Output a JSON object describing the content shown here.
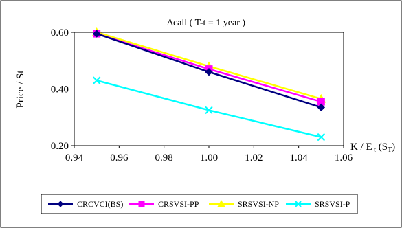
{
  "chart_data": {
    "type": "line",
    "title": "Δcall ( T-t = 1 year )",
    "xlabel": "K / E t (ST)",
    "ylabel": "Price / St",
    "x": [
      0.95,
      1.0,
      1.05
    ],
    "xlim": [
      0.94,
      1.06
    ],
    "ylim": [
      0.2,
      0.6
    ],
    "xticks": [
      "0.94",
      "0.96",
      "0.98",
      "1.00",
      "1.02",
      "1.04",
      "1.06"
    ],
    "yticks": [
      "0.20",
      "0.40",
      "0.60"
    ],
    "grid": "horizontal",
    "legend_position": "bottom",
    "series": [
      {
        "name": "CRCVCI(BS)",
        "values": [
          0.595,
          0.46,
          0.335
        ],
        "color": "#000080",
        "marker": "diamond"
      },
      {
        "name": "CRSVSI-PP",
        "values": [
          0.595,
          0.47,
          0.355
        ],
        "color": "#FF00FF",
        "marker": "square"
      },
      {
        "name": "SRSVSI-NP",
        "values": [
          0.6,
          0.48,
          0.365
        ],
        "color": "#FFFF00",
        "marker": "triangle"
      },
      {
        "name": "SRSVSI-P",
        "values": [
          0.43,
          0.325,
          0.23
        ],
        "color": "#00FFFF",
        "marker": "x"
      }
    ]
  }
}
